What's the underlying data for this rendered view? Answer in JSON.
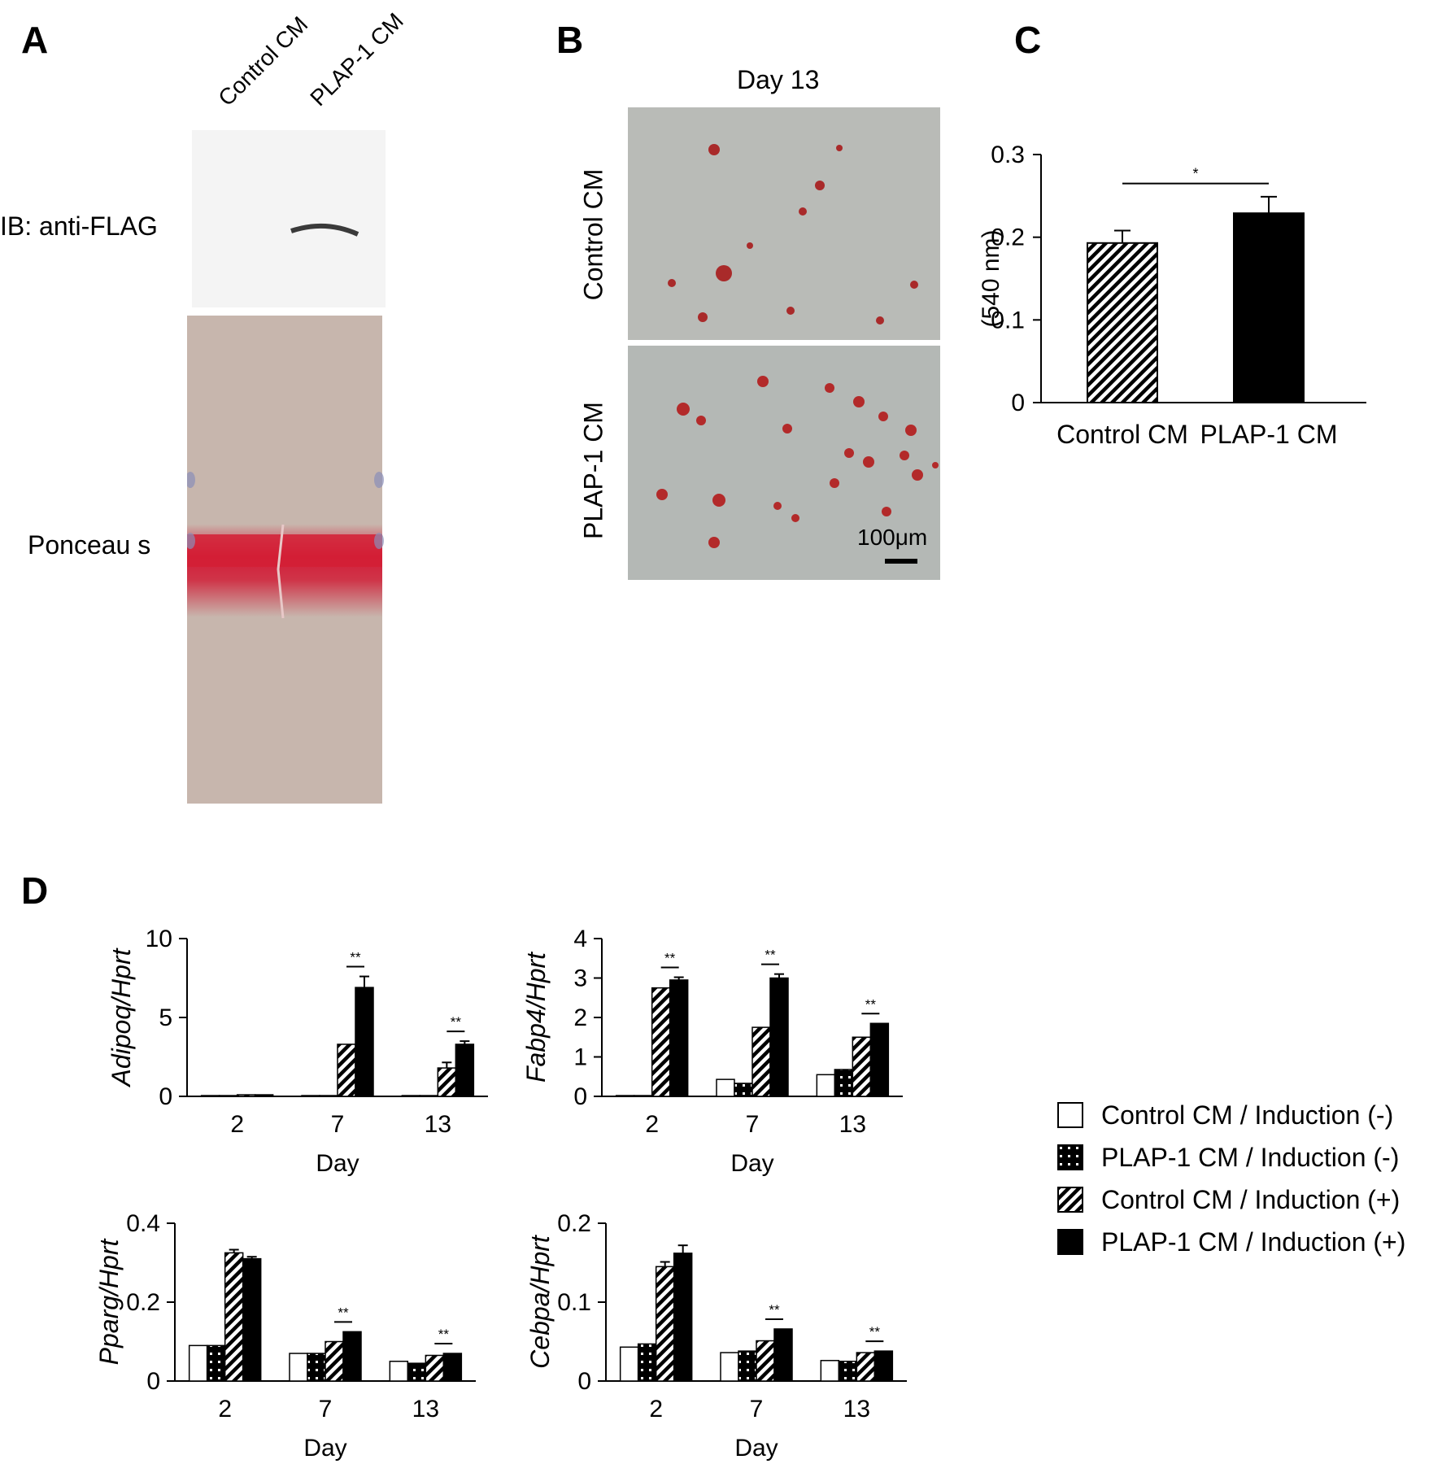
{
  "panels": {
    "a": "A",
    "b": "B",
    "c": "C",
    "d": "D"
  },
  "panel_a": {
    "lanes": [
      "Control CM",
      "PLAP-1 CM"
    ],
    "blot_label": "IB: anti-FLAG",
    "stain_label": "Ponceau s"
  },
  "panel_b": {
    "title": "Day 13",
    "rows": [
      "Control CM",
      "PLAP-1 CM"
    ],
    "scale_bar": "100μm"
  },
  "legend": {
    "items": [
      {
        "label": "Control CM / Induction (-)",
        "style": "white"
      },
      {
        "label": "PLAP-1 CM / Induction (-)",
        "style": "dotted"
      },
      {
        "label": "Control CM / Induction (+)",
        "style": "hatched"
      },
      {
        "label": "PLAP-1 CM / Induction (+)",
        "style": "black"
      }
    ]
  },
  "colors": {
    "bar_fill": "#000000",
    "bar_white": "#ffffff",
    "stain_red": "#c81e32",
    "membrane": "#c8b7ae",
    "micrograph": "#b8bab6"
  },
  "chart_data": [
    {
      "id": "C",
      "type": "bar",
      "categories": [
        "Control CM",
        "PLAP-1 CM"
      ],
      "series": [
        {
          "values": [
            0.193,
            0.229
          ],
          "errors": [
            0.015,
            0.02
          ],
          "patterns": [
            "hatched",
            "black"
          ]
        }
      ],
      "ylabel": "(540 nm)",
      "ylim": [
        0,
        0.3
      ],
      "yticks": [
        "0",
        "0.1",
        "0.2",
        "0.3"
      ],
      "significance": [
        {
          "between": [
            0,
            1
          ],
          "label": "*"
        }
      ]
    },
    {
      "id": "D1",
      "type": "bar",
      "categories": [
        "2",
        "7",
        "13"
      ],
      "xlabel": "Day",
      "ylabel": "Adipoq/Hprt",
      "ylim": [
        0,
        10
      ],
      "yticks": [
        "0",
        "5",
        "10"
      ],
      "series": [
        {
          "name": "Control CM / Induction (-)",
          "values": [
            0.05,
            0.05,
            0.05
          ],
          "errors": [
            0,
            0,
            0
          ]
        },
        {
          "name": "PLAP-1 CM / Induction (-)",
          "values": [
            0.05,
            0.05,
            0.05
          ],
          "errors": [
            0,
            0,
            0
          ]
        },
        {
          "name": "Control CM / Induction (+)",
          "values": [
            0.1,
            3.3,
            1.8
          ],
          "errors": [
            0,
            0,
            0.35
          ]
        },
        {
          "name": "PLAP-1 CM / Induction (+)",
          "values": [
            0.1,
            6.9,
            3.3
          ],
          "errors": [
            0,
            0.7,
            0.2
          ]
        }
      ],
      "significance": [
        {
          "category": "7",
          "label": "**"
        },
        {
          "category": "13",
          "label": "**"
        }
      ]
    },
    {
      "id": "D2",
      "type": "bar",
      "categories": [
        "2",
        "7",
        "13"
      ],
      "xlabel": "Day",
      "ylabel": "Fabp4/Hprt",
      "ylim": [
        0,
        4
      ],
      "yticks": [
        "0",
        "1",
        "2",
        "3",
        "4"
      ],
      "series": [
        {
          "name": "Control CM / Induction (-)",
          "values": [
            0.02,
            0.43,
            0.55
          ],
          "errors": [
            0,
            0,
            0
          ]
        },
        {
          "name": "PLAP-1 CM / Induction (-)",
          "values": [
            0.02,
            0.33,
            0.68
          ],
          "errors": [
            0,
            0,
            0
          ]
        },
        {
          "name": "Control CM / Induction (+)",
          "values": [
            2.75,
            1.75,
            1.5
          ],
          "errors": [
            0,
            0,
            0
          ]
        },
        {
          "name": "PLAP-1 CM / Induction (+)",
          "values": [
            2.95,
            3.0,
            1.85
          ],
          "errors": [
            0.07,
            0.1,
            0
          ]
        }
      ],
      "significance": [
        {
          "category": "2",
          "label": "**"
        },
        {
          "category": "7",
          "label": "**"
        },
        {
          "category": "13",
          "label": "**"
        }
      ]
    },
    {
      "id": "D3",
      "type": "bar",
      "categories": [
        "2",
        "7",
        "13"
      ],
      "xlabel": "Day",
      "ylabel": "Pparg/Hprt",
      "ylim": [
        0,
        0.4
      ],
      "yticks": [
        "0",
        "0.2",
        "0.4"
      ],
      "series": [
        {
          "name": "Control CM / Induction (-)",
          "values": [
            0.09,
            0.07,
            0.05
          ],
          "errors": [
            0,
            0,
            0
          ]
        },
        {
          "name": "PLAP-1 CM / Induction (-)",
          "values": [
            0.09,
            0.07,
            0.045
          ],
          "errors": [
            0,
            0,
            0
          ]
        },
        {
          "name": "Control CM / Induction (+)",
          "values": [
            0.325,
            0.1,
            0.065
          ],
          "errors": [
            0.008,
            0,
            0
          ]
        },
        {
          "name": "PLAP-1 CM / Induction (+)",
          "values": [
            0.31,
            0.125,
            0.07
          ],
          "errors": [
            0.005,
            0,
            0
          ]
        }
      ],
      "significance": [
        {
          "category": "7",
          "label": "**"
        },
        {
          "category": "13",
          "label": "**"
        }
      ]
    },
    {
      "id": "D4",
      "type": "bar",
      "categories": [
        "2",
        "7",
        "13"
      ],
      "xlabel": "Day",
      "ylabel": "Cebpa/Hprt",
      "ylim": [
        0,
        0.2
      ],
      "yticks": [
        "0",
        "0.1",
        "0.2"
      ],
      "series": [
        {
          "name": "Control CM / Induction (-)",
          "values": [
            0.043,
            0.036,
            0.026
          ],
          "errors": [
            0,
            0,
            0
          ]
        },
        {
          "name": "PLAP-1 CM / Induction (-)",
          "values": [
            0.047,
            0.038,
            0.025
          ],
          "errors": [
            0,
            0,
            0
          ]
        },
        {
          "name": "Control CM / Induction (+)",
          "values": [
            0.145,
            0.051,
            0.036
          ],
          "errors": [
            0.006,
            0,
            0
          ]
        },
        {
          "name": "PLAP-1 CM / Induction (+)",
          "values": [
            0.162,
            0.066,
            0.038
          ],
          "errors": [
            0.01,
            0,
            0
          ]
        }
      ],
      "significance": [
        {
          "category": "7",
          "label": "**"
        },
        {
          "category": "13",
          "label": "**"
        }
      ]
    }
  ]
}
